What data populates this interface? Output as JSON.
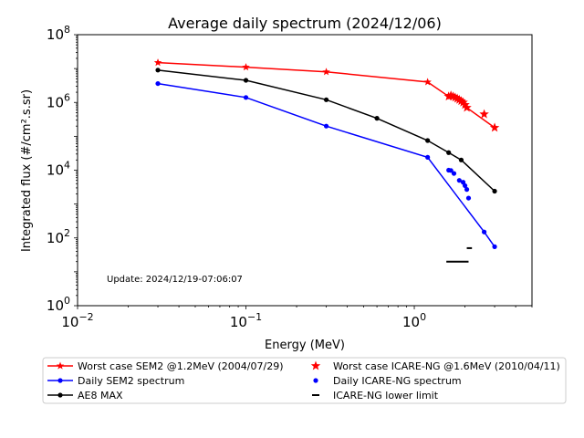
{
  "chart_data": {
    "type": "line",
    "title": "Average daily spectrum (2024/12/06)",
    "xlabel": "Energy (MeV)",
    "ylabel": "Integrated flux (#/cm².s.sr)",
    "xscale": "log",
    "yscale": "log",
    "xlim": [
      0.01,
      5
    ],
    "ylim": [
      1,
      100000000
    ],
    "x_ticks": [
      {
        "value": 0.01,
        "base": "10",
        "exp": "−2"
      },
      {
        "value": 0.1,
        "base": "10",
        "exp": "−1"
      },
      {
        "value": 1,
        "base": "10",
        "exp": "0"
      }
    ],
    "y_ticks": [
      {
        "value": 1,
        "base": "10",
        "exp": "0"
      },
      {
        "value": 100,
        "base": "10",
        "exp": "2"
      },
      {
        "value": 10000,
        "base": "10",
        "exp": "4"
      },
      {
        "value": 1000000,
        "base": "10",
        "exp": "6"
      },
      {
        "value": 100000000,
        "base": "10",
        "exp": "8"
      }
    ],
    "annotation": "Update: 2024/12/19-07:06:07",
    "grid": false,
    "legend_position": "bottom",
    "series": [
      {
        "name": "Worst case SEM2 @1.2MeV (2004/07/29)",
        "color": "#ff0000",
        "style": "line-star",
        "points": [
          [
            0.03,
            15000000
          ],
          [
            0.1,
            11000000
          ],
          [
            0.3,
            8000000
          ],
          [
            1.2,
            4000000
          ],
          [
            1.6,
            1500000
          ],
          [
            1.65,
            1600000
          ],
          [
            1.7,
            1500000
          ],
          [
            1.75,
            1400000
          ],
          [
            1.8,
            1300000
          ],
          [
            1.85,
            1200000
          ],
          [
            1.9,
            1100000
          ],
          [
            1.95,
            1000000
          ],
          [
            2.0,
            850000
          ],
          [
            2.05,
            700000
          ],
          [
            3.0,
            180000
          ]
        ]
      },
      {
        "name": "Daily SEM2 spectrum",
        "color": "#0000ff",
        "style": "line-dot",
        "points": [
          [
            0.03,
            3600000
          ],
          [
            0.1,
            1400000
          ],
          [
            0.3,
            200000
          ],
          [
            1.2,
            24000
          ],
          [
            2.6,
            150
          ],
          [
            3.0,
            55
          ]
        ]
      },
      {
        "name": "AE8 MAX",
        "color": "#000000",
        "style": "line-dot",
        "points": [
          [
            0.03,
            9000000
          ],
          [
            0.1,
            4500000
          ],
          [
            0.3,
            1200000
          ],
          [
            0.6,
            340000
          ],
          [
            1.2,
            75000
          ],
          [
            1.6,
            33000
          ],
          [
            1.9,
            20000
          ],
          [
            3.0,
            2400
          ]
        ]
      },
      {
        "name": "Worst case ICARE-NG @1.6MeV (2010/04/11)",
        "color": "#ff0000",
        "style": "star",
        "points": [
          [
            1.6,
            1500000
          ],
          [
            1.65,
            1600000
          ],
          [
            1.7,
            1500000
          ],
          [
            1.75,
            1400000
          ],
          [
            1.8,
            1300000
          ],
          [
            1.85,
            1200000
          ],
          [
            1.9,
            1100000
          ],
          [
            1.95,
            1000000
          ],
          [
            2.0,
            850000
          ],
          [
            2.05,
            700000
          ],
          [
            2.6,
            450000
          ],
          [
            3.0,
            180000
          ]
        ]
      },
      {
        "name": "Daily ICARE-NG spectrum",
        "color": "#0000ff",
        "style": "dot",
        "points": [
          [
            1.6,
            10000
          ],
          [
            1.65,
            9800
          ],
          [
            1.72,
            8000
          ],
          [
            1.85,
            5000
          ],
          [
            1.95,
            4400
          ],
          [
            2.0,
            3500
          ],
          [
            2.05,
            2700
          ],
          [
            2.1,
            1500
          ]
        ]
      },
      {
        "name": "ICARE-NG lower limit",
        "color": "#000000",
        "style": "hline",
        "points": [
          [
            1.55,
            20
          ],
          [
            2.1,
            20
          ],
          [
            2.05,
            50
          ],
          [
            2.2,
            50
          ]
        ]
      }
    ]
  }
}
